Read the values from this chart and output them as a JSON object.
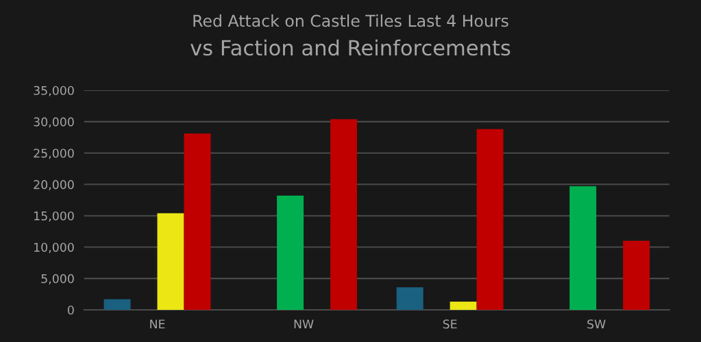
{
  "chart_data": {
    "type": "bar",
    "title": "Red Attack on Castle Tiles Last 4 Hours",
    "subtitle": "vs Faction and Reinforcements",
    "categories": [
      "NE",
      "NW",
      "SE",
      "SW"
    ],
    "series": [
      {
        "color": "#1a6080",
        "values": [
          1700,
          null,
          3600,
          null
        ]
      },
      {
        "color": "#00b050",
        "values": [
          null,
          18200,
          null,
          19700
        ]
      },
      {
        "color": "#ebe614",
        "values": [
          15400,
          null,
          1300,
          null
        ]
      },
      {
        "color": "#c00000",
        "values": [
          28100,
          30400,
          28800,
          11000
        ]
      }
    ],
    "ylim": [
      0,
      35000
    ],
    "yticks": [
      0,
      {
        "value": 5000,
        "label": "5,000"
      },
      {
        "value": 10000,
        "label": "10,000"
      },
      {
        "value": 15000,
        "label": "15,000"
      },
      {
        "value": 20000,
        "label": "20,000"
      },
      {
        "value": 25000,
        "label": "25,000"
      },
      {
        "value": 30000,
        "label": "30,000"
      },
      {
        "value": 35000,
        "label": "35,000"
      }
    ],
    "grid": "y"
  }
}
